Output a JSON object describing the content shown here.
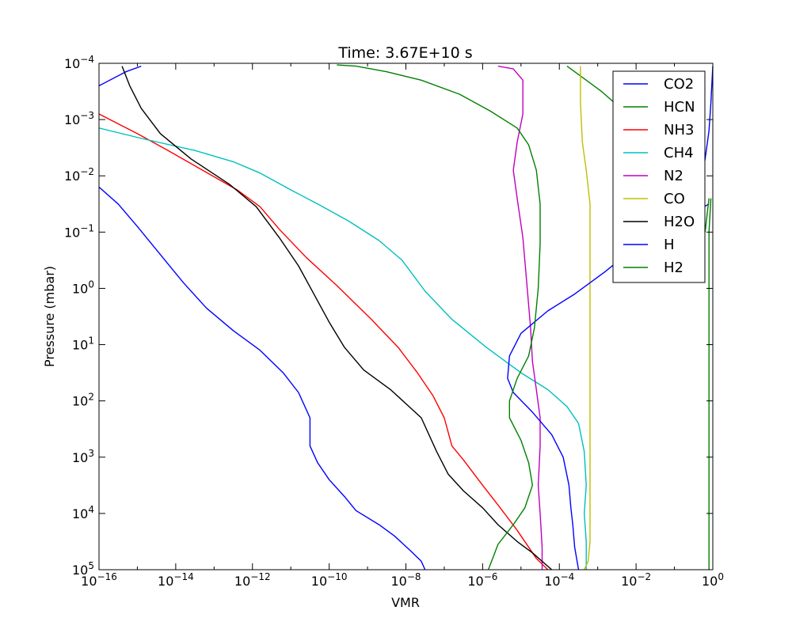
{
  "chart_data": {
    "type": "line",
    "title": "Time: 3.67E+10 s",
    "xlabel": "VMR",
    "ylabel": "Pressure (mbar)",
    "x_scale": "log",
    "y_scale": "log",
    "y_inverted": true,
    "xlim": [
      1e-16,
      1
    ],
    "ylim": [
      100000,
      0.0001
    ],
    "x_ticks": [
      {
        "value": 1e-16,
        "base": "10",
        "exp": "−16"
      },
      {
        "value": 1e-14,
        "base": "10",
        "exp": "−14"
      },
      {
        "value": 1e-12,
        "base": "10",
        "exp": "−12"
      },
      {
        "value": 1e-10,
        "base": "10",
        "exp": "−10"
      },
      {
        "value": 1e-08,
        "base": "10",
        "exp": "−8"
      },
      {
        "value": 1e-06,
        "base": "10",
        "exp": "−6"
      },
      {
        "value": 0.0001,
        "base": "10",
        "exp": "−4"
      },
      {
        "value": 0.01,
        "base": "10",
        "exp": "−2"
      },
      {
        "value": 1,
        "base": "10",
        "exp": "0"
      }
    ],
    "y_ticks": [
      {
        "value": 0.0001,
        "base": "10",
        "exp": "−4"
      },
      {
        "value": 0.001,
        "base": "10",
        "exp": "−3"
      },
      {
        "value": 0.01,
        "base": "10",
        "exp": "−2"
      },
      {
        "value": 0.1,
        "base": "10",
        "exp": "−1"
      },
      {
        "value": 1,
        "base": "10",
        "exp": "0"
      },
      {
        "value": 10,
        "base": "10",
        "exp": "1"
      },
      {
        "value": 100,
        "base": "10",
        "exp": "2"
      },
      {
        "value": 1000,
        "base": "10",
        "exp": "3"
      },
      {
        "value": 10000,
        "base": "10",
        "exp": "4"
      },
      {
        "value": 100000,
        "base": "10",
        "exp": "5"
      }
    ],
    "legend_placement": "top-right",
    "grid": false,
    "series": [
      {
        "name": "CO2",
        "color": "#0000ff",
        "points": [
          [
            -16.0,
            -3.6
          ],
          [
            -15.3,
            -3.85
          ],
          [
            -14.9,
            -3.95
          ]
        ]
      },
      {
        "name": "HCN",
        "color": "#008000",
        "points": [
          [
            -3.8,
            -3.95
          ],
          [
            -3.3,
            -3.7
          ],
          [
            -2.9,
            -3.5
          ],
          [
            -2.4,
            -3.2
          ],
          [
            -2.0,
            -2.95
          ]
        ]
      },
      {
        "name": "NH3",
        "color": "#ff0000",
        "points": [
          [
            -16.0,
            -3.1
          ],
          [
            -15.0,
            -2.75
          ],
          [
            -14.2,
            -2.45
          ],
          [
            -13.3,
            -2.1
          ],
          [
            -12.4,
            -1.75
          ],
          [
            -11.8,
            -1.45
          ],
          [
            -11.3,
            -1.05
          ],
          [
            -10.6,
            -0.55
          ],
          [
            -9.8,
            -0.05
          ],
          [
            -8.9,
            0.55
          ],
          [
            -8.2,
            1.05
          ],
          [
            -7.7,
            1.5
          ],
          [
            -7.3,
            1.9
          ],
          [
            -7.0,
            2.3
          ],
          [
            -6.8,
            2.8
          ],
          [
            -6.5,
            3.05
          ],
          [
            -6.0,
            3.5
          ],
          [
            -5.6,
            3.85
          ],
          [
            -5.1,
            4.3
          ],
          [
            -4.6,
            4.8
          ],
          [
            -4.3,
            5.0
          ]
        ]
      },
      {
        "name": "CH4",
        "color": "#00bfbf",
        "points": [
          [
            -16.0,
            -2.85
          ],
          [
            -14.8,
            -2.65
          ],
          [
            -13.5,
            -2.45
          ],
          [
            -12.5,
            -2.25
          ],
          [
            -11.8,
            -2.05
          ],
          [
            -11.0,
            -1.75
          ],
          [
            -10.3,
            -1.5
          ],
          [
            -9.5,
            -1.2
          ],
          [
            -8.7,
            -0.85
          ],
          [
            -8.1,
            -0.5
          ],
          [
            -7.5,
            0.05
          ],
          [
            -6.8,
            0.55
          ],
          [
            -5.9,
            1.05
          ],
          [
            -5.0,
            1.5
          ],
          [
            -4.3,
            1.8
          ],
          [
            -3.8,
            2.1
          ],
          [
            -3.5,
            2.4
          ],
          [
            -3.35,
            2.9
          ],
          [
            -3.3,
            3.5
          ],
          [
            -3.35,
            4.0
          ],
          [
            -3.3,
            4.5
          ],
          [
            -3.3,
            5.0
          ]
        ]
      },
      {
        "name": "N2",
        "color": "#bf00bf",
        "points": [
          [
            -5.6,
            -3.95
          ],
          [
            -5.2,
            -3.9
          ],
          [
            -4.95,
            -3.7
          ],
          [
            -4.95,
            -3.1
          ],
          [
            -5.1,
            -2.6
          ],
          [
            -5.2,
            -2.1
          ],
          [
            -5.1,
            -1.6
          ],
          [
            -4.95,
            -0.9
          ],
          [
            -4.85,
            -0.1
          ],
          [
            -4.75,
            0.7
          ],
          [
            -4.7,
            1.3
          ],
          [
            -4.6,
            1.8
          ],
          [
            -4.5,
            2.3
          ],
          [
            -4.5,
            2.8
          ],
          [
            -4.55,
            3.5
          ],
          [
            -4.5,
            4.0
          ],
          [
            -4.45,
            4.6
          ],
          [
            -4.45,
            5.0
          ]
        ]
      },
      {
        "name": "CO",
        "color": "#bfbf00",
        "points": [
          [
            -3.45,
            -3.95
          ],
          [
            -3.45,
            -3.3
          ],
          [
            -3.4,
            -2.6
          ],
          [
            -3.3,
            -2.1
          ],
          [
            -3.2,
            -1.5
          ],
          [
            -3.2,
            0.0
          ],
          [
            -3.2,
            2.0
          ],
          [
            -3.2,
            3.5
          ],
          [
            -3.2,
            4.5
          ],
          [
            -3.25,
            4.85
          ],
          [
            -3.35,
            5.0
          ]
        ]
      },
      {
        "name": "H2O",
        "color": "#000000",
        "points": [
          [
            -15.4,
            -3.95
          ],
          [
            -15.2,
            -3.6
          ],
          [
            -14.9,
            -3.2
          ],
          [
            -14.4,
            -2.75
          ],
          [
            -13.6,
            -2.3
          ],
          [
            -12.6,
            -1.85
          ],
          [
            -11.9,
            -1.45
          ],
          [
            -11.3,
            -0.9
          ],
          [
            -10.8,
            -0.4
          ],
          [
            -10.4,
            0.1
          ],
          [
            -10.0,
            0.6
          ],
          [
            -9.6,
            1.05
          ],
          [
            -9.1,
            1.45
          ],
          [
            -8.4,
            1.8
          ],
          [
            -7.6,
            2.3
          ],
          [
            -7.2,
            2.9
          ],
          [
            -6.9,
            3.3
          ],
          [
            -6.5,
            3.6
          ],
          [
            -6.0,
            3.9
          ],
          [
            -5.6,
            4.2
          ],
          [
            -5.1,
            4.5
          ],
          [
            -4.7,
            4.7
          ],
          [
            -4.2,
            5.0
          ]
        ]
      },
      {
        "name": "H",
        "color": "#0000ff",
        "points": [
          [
            -16.0,
            -1.8
          ],
          [
            -15.5,
            -1.5
          ],
          [
            -15.0,
            -1.1
          ],
          [
            -14.4,
            -0.6
          ],
          [
            -13.8,
            -0.1
          ],
          [
            -13.2,
            0.35
          ],
          [
            -12.5,
            0.75
          ],
          [
            -11.8,
            1.1
          ],
          [
            -11.2,
            1.5
          ],
          [
            -10.8,
            1.85
          ],
          [
            -10.5,
            2.3
          ],
          [
            -10.5,
            2.8
          ],
          [
            -10.3,
            3.1
          ],
          [
            -10.0,
            3.4
          ],
          [
            -9.6,
            3.7
          ],
          [
            -9.3,
            3.95
          ],
          [
            -8.7,
            4.2
          ],
          [
            -8.3,
            4.4
          ],
          [
            -7.9,
            4.65
          ],
          [
            -7.6,
            4.85
          ],
          [
            -7.5,
            5.0
          ]
        ]
      },
      {
        "name": "H2",
        "color": "#008000",
        "points": [
          [
            -0.1,
            5.0
          ],
          [
            -0.1,
            3.0
          ],
          [
            -0.1,
            1.0
          ],
          [
            -0.1,
            -1.0
          ],
          [
            -0.05,
            -1.6
          ]
        ]
      }
    ],
    "extra_curves": [
      {
        "series_index": 0,
        "color": "#0000ff",
        "points": [
          [
            -3.5,
            5.0
          ],
          [
            -3.6,
            4.6
          ],
          [
            -3.65,
            4.2
          ],
          [
            -3.7,
            3.9
          ],
          [
            -3.75,
            3.5
          ],
          [
            -3.9,
            3.0
          ],
          [
            -4.2,
            2.6
          ],
          [
            -4.7,
            2.2
          ],
          [
            -5.2,
            1.85
          ],
          [
            -5.35,
            1.6
          ],
          [
            -5.3,
            1.2
          ],
          [
            -5.0,
            0.8
          ],
          [
            -4.3,
            0.4
          ],
          [
            -3.6,
            0.1
          ],
          [
            -2.8,
            -0.3
          ],
          [
            -1.9,
            -0.8
          ],
          [
            -0.1,
            -1.5
          ]
        ]
      },
      {
        "series_index": 0,
        "color": "#0000ff",
        "points": [
          [
            -0.3,
            -1.9
          ],
          [
            -0.2,
            -2.3
          ],
          [
            -0.1,
            -2.8
          ],
          [
            -0.05,
            -3.3
          ],
          [
            0.0,
            -3.95
          ]
        ]
      },
      {
        "series_index": 1,
        "color": "#008000",
        "points": [
          [
            -5.85,
            5.0
          ],
          [
            -5.6,
            4.55
          ],
          [
            -5.2,
            4.2
          ],
          [
            -4.9,
            3.9
          ],
          [
            -4.7,
            3.5
          ],
          [
            -4.8,
            3.1
          ],
          [
            -5.0,
            2.7
          ],
          [
            -5.3,
            2.3
          ],
          [
            -5.3,
            2.0
          ],
          [
            -5.1,
            1.6
          ],
          [
            -4.8,
            1.2
          ],
          [
            -4.65,
            0.7
          ],
          [
            -4.55,
            0.0
          ],
          [
            -4.5,
            -0.8
          ],
          [
            -4.5,
            -1.5
          ],
          [
            -4.6,
            -2.1
          ],
          [
            -4.8,
            -2.55
          ],
          [
            -5.1,
            -2.85
          ],
          [
            -5.8,
            -3.15
          ],
          [
            -6.6,
            -3.45
          ],
          [
            -7.6,
            -3.7
          ],
          [
            -8.5,
            -3.85
          ],
          [
            -9.3,
            -3.95
          ],
          [
            -9.8,
            -3.97
          ]
        ]
      },
      {
        "series_index": 1,
        "color": "#008000",
        "points": [
          [
            -0.2,
            -1.0
          ],
          [
            -0.15,
            -1.3
          ],
          [
            -0.1,
            -1.6
          ]
        ]
      }
    ]
  }
}
